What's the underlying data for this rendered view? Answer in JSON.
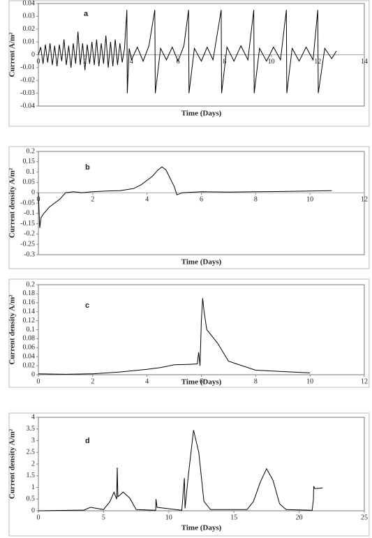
{
  "chart_data": [
    {
      "type": "line",
      "letter": "a",
      "ylabel": "Current A/m²",
      "xlabel": "Time (Days)",
      "xlim": [
        0,
        14
      ],
      "xticks": [
        0,
        2,
        4,
        6,
        8,
        10,
        12,
        14
      ],
      "ylim": [
        -0.04,
        0.04
      ],
      "yticks": [
        -0.04,
        -0.03,
        -0.02,
        -0.01,
        0,
        0.01,
        0.02,
        0.03,
        0.04
      ],
      "color": "#000000",
      "x": [
        0,
        0.1,
        0.2,
        0.3,
        0.4,
        0.5,
        0.6,
        0.7,
        0.8,
        0.9,
        1.0,
        1.1,
        1.2,
        1.3,
        1.4,
        1.5,
        1.6,
        1.7,
        1.8,
        1.9,
        2.0,
        2.1,
        2.2,
        2.3,
        2.4,
        2.5,
        2.6,
        2.7,
        2.8,
        2.9,
        3.0,
        3.1,
        3.2,
        3.3,
        3.4,
        3.5,
        3.6,
        3.7,
        3.8,
        3.82,
        3.9,
        4.0,
        4.25,
        4.5,
        4.75,
        5.0,
        5.02,
        5.25,
        5.5,
        5.75,
        6.0,
        6.25,
        6.45,
        6.47,
        6.7,
        7.0,
        7.25,
        7.5,
        7.85,
        7.87,
        8.1,
        8.4,
        8.7,
        9.0,
        9.25,
        9.27,
        9.5,
        9.8,
        10.1,
        10.4,
        10.65,
        10.67,
        10.9,
        11.2,
        11.5,
        11.8,
        12.0,
        12.02,
        12.3,
        12.6,
        12.8
      ],
      "values": [
        0,
        0.006,
        -0.007,
        0.008,
        -0.006,
        0.009,
        -0.008,
        0.007,
        -0.009,
        0.008,
        -0.005,
        0.012,
        -0.008,
        0.007,
        -0.01,
        0.009,
        -0.007,
        0.018,
        -0.008,
        0.009,
        -0.012,
        0.008,
        -0.007,
        0.01,
        -0.008,
        0.012,
        -0.009,
        0.009,
        -0.007,
        0.015,
        -0.01,
        0.01,
        -0.009,
        0.012,
        -0.008,
        0.009,
        -0.006,
        0.005,
        0.035,
        -0.03,
        0.005,
        -0.004,
        0.006,
        -0.005,
        0.007,
        0.035,
        -0.03,
        0.005,
        -0.004,
        0.006,
        -0.005,
        0.007,
        0.035,
        -0.03,
        0.005,
        -0.005,
        0.006,
        -0.004,
        0.035,
        -0.03,
        0.006,
        -0.005,
        0.007,
        -0.004,
        0.035,
        -0.03,
        0.005,
        -0.005,
        0.006,
        -0.004,
        0.035,
        -0.03,
        0.005,
        -0.005,
        0.006,
        -0.004,
        0.035,
        -0.03,
        0.005,
        -0.003,
        0.003
      ]
    },
    {
      "type": "line",
      "letter": "b",
      "ylabel": "Current density A/m²",
      "xlabel": "Time (Days)",
      "xlim": [
        0,
        12
      ],
      "xticks": [
        0,
        2,
        4,
        6,
        8,
        10,
        12
      ],
      "ylim": [
        -0.3,
        0.2
      ],
      "yticks": [
        -0.3,
        -0.25,
        -0.2,
        -0.15,
        -0.1,
        -0.05,
        0,
        0.05,
        0.1,
        0.15,
        0.2
      ],
      "color": "#000000",
      "x": [
        0,
        0.05,
        0.1,
        0.2,
        0.4,
        0.6,
        0.8,
        1.0,
        1.3,
        1.6,
        2.0,
        2.5,
        3.0,
        3.5,
        3.8,
        4.0,
        4.2,
        4.4,
        4.55,
        4.7,
        4.85,
        5.0,
        5.1,
        5.3,
        6,
        7,
        8,
        9,
        10,
        10.8
      ],
      "values": [
        0,
        -0.17,
        -0.12,
        -0.1,
        -0.07,
        -0.05,
        -0.03,
        0,
        0.005,
        0,
        0.005,
        0.008,
        0.01,
        0.02,
        0.04,
        0.06,
        0.08,
        0.11,
        0.125,
        0.11,
        0.07,
        0.03,
        -0.01,
        0,
        0.005,
        0.003,
        0.005,
        0.006,
        0.008,
        0.01
      ]
    },
    {
      "type": "line",
      "letter": "c",
      "ylabel": "Current density A/m²",
      "xlabel": "Time (Days)",
      "xlim": [
        0,
        12
      ],
      "xticks": [
        0,
        2,
        4,
        6,
        8,
        10,
        12
      ],
      "ylim": [
        0,
        0.2
      ],
      "yticks": [
        0,
        0.02,
        0.04,
        0.06,
        0.08,
        0.1,
        0.12,
        0.14,
        0.16,
        0.18,
        0.2
      ],
      "color": "#000000",
      "x": [
        0,
        1,
        2,
        3,
        4,
        4.5,
        5,
        5.5,
        5.85,
        5.9,
        5.95,
        6.0,
        6.05,
        6.1,
        6.2,
        6.4,
        6.6,
        6.8,
        7.0,
        7.5,
        8,
        9,
        10
      ],
      "values": [
        0.002,
        0.001,
        0.002,
        0.006,
        0.012,
        0.016,
        0.022,
        0.023,
        0.024,
        0.05,
        0.02,
        0.12,
        0.17,
        0.14,
        0.1,
        0.085,
        0.07,
        0.05,
        0.03,
        0.02,
        0.01,
        0.007,
        0.004
      ]
    },
    {
      "type": "line",
      "letter": "d",
      "ylabel": "Current density  A/m²",
      "xlabel": "Time (Days)",
      "xlim": [
        0,
        25
      ],
      "xticks": [
        0,
        5,
        10,
        15,
        20,
        25
      ],
      "ylim": [
        0,
        4
      ],
      "yticks": [
        0,
        0.5,
        1,
        1.5,
        2,
        2.5,
        3,
        3.5,
        4
      ],
      "color": "#000000",
      "x": [
        0,
        3.5,
        4,
        4.5,
        5,
        5.5,
        5.8,
        6.0,
        6.05,
        6.1,
        6.5,
        7,
        7.5,
        9,
        9.02,
        9.1,
        11,
        11.2,
        11.25,
        11.5,
        11.9,
        12.3,
        12.7,
        13.2,
        16,
        16.5,
        17,
        17.5,
        18,
        18.5,
        19,
        21,
        21.1,
        21.12,
        21.2,
        21.8
      ],
      "values": [
        0,
        0.03,
        0.15,
        0.1,
        0.05,
        0.4,
        0.8,
        0.5,
        1.85,
        0.6,
        0.8,
        0.55,
        0.05,
        0.02,
        0.5,
        0.15,
        0.02,
        1.4,
        0.1,
        1.5,
        3.45,
        2.5,
        0.4,
        0.05,
        0.05,
        0.4,
        1.2,
        1.8,
        1.3,
        0.3,
        0.05,
        0.02,
        0.5,
        1.05,
        0.95,
        0.98
      ]
    }
  ]
}
